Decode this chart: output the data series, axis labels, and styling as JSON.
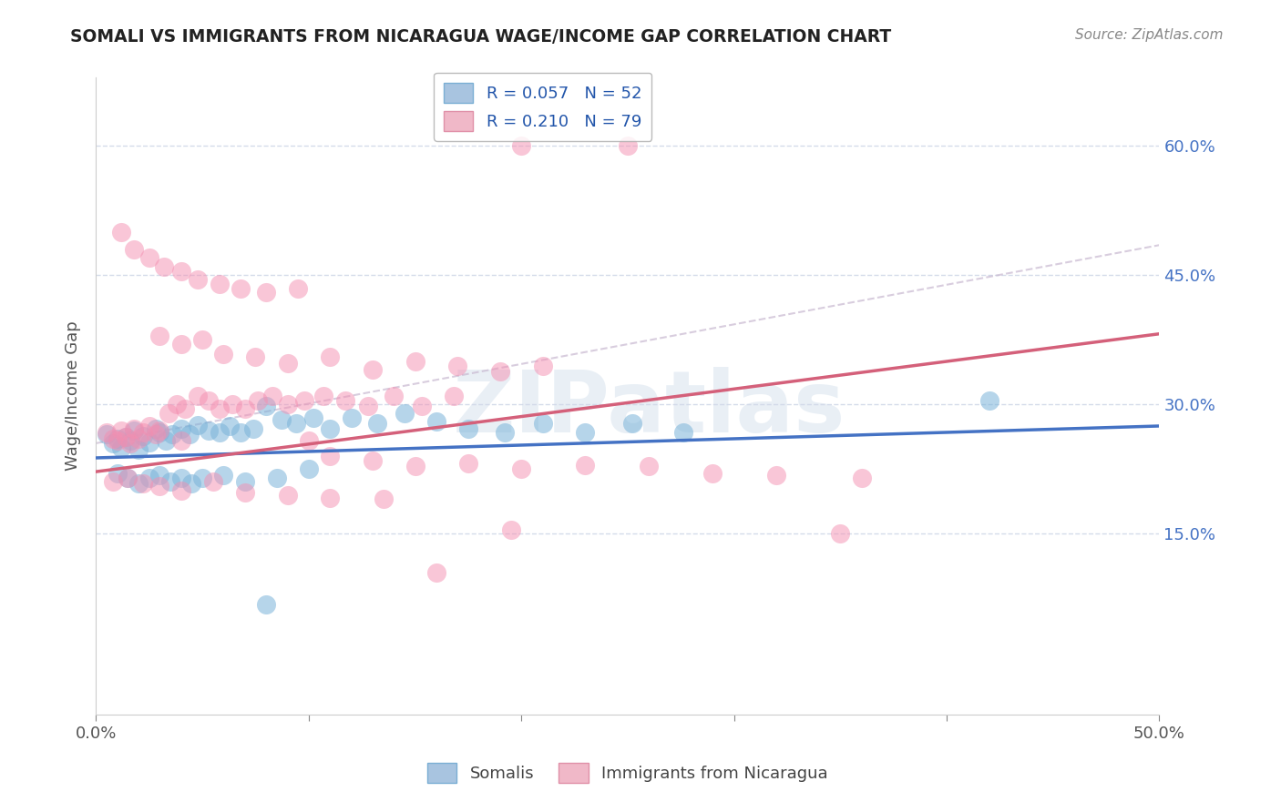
{
  "title": "SOMALI VS IMMIGRANTS FROM NICARAGUA WAGE/INCOME GAP CORRELATION CHART",
  "source": "Source: ZipAtlas.com",
  "ylabel": "Wage/Income Gap",
  "somali_color": "#7ab3d9",
  "somali_edge": "#5b9bd5",
  "nicaragua_color": "#f48fb1",
  "nicaragua_edge": "#e06090",
  "trendline_somali": "#4472c4",
  "trendline_nicaragua": "#d4607a",
  "dashed_line_color": "#c0b8c8",
  "background_color": "#ffffff",
  "grid_color": "#d0d8e8",
  "ytick_color": "#4472c4",
  "xlim": [
    0.0,
    0.5
  ],
  "ylim": [
    -0.06,
    0.68
  ],
  "xtick_vals": [
    0.0,
    0.1,
    0.2,
    0.3,
    0.4,
    0.5
  ],
  "xtick_labels": [
    "0.0%",
    "",
    "",
    "",
    "",
    "50.0%"
  ],
  "ytick_vals": [
    0.15,
    0.3,
    0.45,
    0.6
  ],
  "ytick_labels": [
    "15.0%",
    "30.0%",
    "45.0%",
    "60.0%"
  ],
  "watermark_text": "ZIPatlas",
  "somali_scatter_x": [
    0.005,
    0.008,
    0.01,
    0.012,
    0.014,
    0.016,
    0.018,
    0.02,
    0.022,
    0.025,
    0.028,
    0.03,
    0.033,
    0.036,
    0.04,
    0.044,
    0.048,
    0.053,
    0.058,
    0.063,
    0.068,
    0.074,
    0.08,
    0.087,
    0.094,
    0.102,
    0.11,
    0.12,
    0.132,
    0.145,
    0.16,
    0.175,
    0.192,
    0.21,
    0.23,
    0.252,
    0.276,
    0.01,
    0.015,
    0.02,
    0.025,
    0.03,
    0.035,
    0.04,
    0.045,
    0.05,
    0.06,
    0.07,
    0.085,
    0.1,
    0.42,
    0.08
  ],
  "somali_scatter_y": [
    0.265,
    0.255,
    0.26,
    0.25,
    0.262,
    0.258,
    0.27,
    0.248,
    0.263,
    0.256,
    0.272,
    0.268,
    0.258,
    0.265,
    0.272,
    0.265,
    0.276,
    0.27,
    0.268,
    0.275,
    0.268,
    0.272,
    0.298,
    0.282,
    0.278,
    0.285,
    0.272,
    0.285,
    0.278,
    0.29,
    0.28,
    0.272,
    0.268,
    0.278,
    0.268,
    0.278,
    0.268,
    0.22,
    0.215,
    0.208,
    0.215,
    0.218,
    0.21,
    0.215,
    0.208,
    0.215,
    0.218,
    0.21,
    0.215,
    0.225,
    0.305,
    0.068
  ],
  "nicaragua_scatter_x": [
    0.005,
    0.008,
    0.01,
    0.012,
    0.014,
    0.016,
    0.018,
    0.02,
    0.022,
    0.025,
    0.028,
    0.03,
    0.034,
    0.038,
    0.042,
    0.048,
    0.053,
    0.058,
    0.064,
    0.07,
    0.076,
    0.083,
    0.09,
    0.098,
    0.107,
    0.117,
    0.128,
    0.14,
    0.153,
    0.168,
    0.03,
    0.04,
    0.05,
    0.06,
    0.075,
    0.09,
    0.11,
    0.13,
    0.15,
    0.17,
    0.19,
    0.21,
    0.012,
    0.018,
    0.025,
    0.032,
    0.04,
    0.048,
    0.058,
    0.068,
    0.08,
    0.095,
    0.11,
    0.13,
    0.15,
    0.175,
    0.2,
    0.23,
    0.26,
    0.29,
    0.32,
    0.36,
    0.008,
    0.015,
    0.022,
    0.03,
    0.04,
    0.055,
    0.07,
    0.09,
    0.11,
    0.135,
    0.16,
    0.195,
    0.35,
    0.2,
    0.25,
    0.04,
    0.1
  ],
  "nicaragua_scatter_y": [
    0.268,
    0.26,
    0.258,
    0.27,
    0.262,
    0.255,
    0.272,
    0.26,
    0.268,
    0.275,
    0.265,
    0.27,
    0.29,
    0.3,
    0.295,
    0.31,
    0.305,
    0.295,
    0.3,
    0.295,
    0.305,
    0.31,
    0.3,
    0.305,
    0.31,
    0.305,
    0.298,
    0.31,
    0.298,
    0.31,
    0.38,
    0.37,
    0.375,
    0.358,
    0.355,
    0.348,
    0.355,
    0.34,
    0.35,
    0.345,
    0.338,
    0.345,
    0.5,
    0.48,
    0.47,
    0.46,
    0.455,
    0.445,
    0.44,
    0.435,
    0.43,
    0.435,
    0.24,
    0.235,
    0.228,
    0.232,
    0.225,
    0.23,
    0.228,
    0.22,
    0.218,
    0.215,
    0.21,
    0.215,
    0.208,
    0.205,
    0.2,
    0.21,
    0.198,
    0.195,
    0.192,
    0.19,
    0.105,
    0.155,
    0.15,
    0.6,
    0.6,
    0.258,
    0.258
  ],
  "somali_trend_x": [
    0.0,
    0.5
  ],
  "somali_trend_y": [
    0.238,
    0.275
  ],
  "nicaragua_trend_x": [
    0.0,
    0.5
  ],
  "nicaragua_trend_y": [
    0.222,
    0.382
  ],
  "dashed_trend_x": [
    0.0,
    0.5
  ],
  "dashed_trend_y": [
    0.255,
    0.485
  ],
  "legend_label_blue": "R = 0.057   N = 52",
  "legend_label_pink": "R = 0.210   N = 79",
  "bottom_legend_blue": "Somalis",
  "bottom_legend_pink": "Immigrants from Nicaragua"
}
